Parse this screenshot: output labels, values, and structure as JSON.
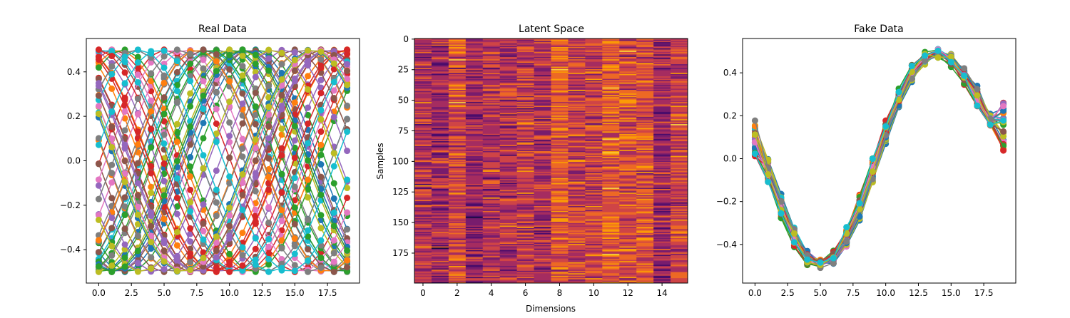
{
  "figure": {
    "palette": [
      "#1f77b4",
      "#ff7f0e",
      "#2ca02c",
      "#d62728",
      "#9467bd",
      "#8c564b",
      "#e377c2",
      "#7f7f7f",
      "#bcbd22",
      "#17becf"
    ],
    "heatmap_colors": [
      "#1b0c41",
      "#4a0c6b",
      "#781c6d",
      "#a52c60",
      "#cf4446",
      "#ed6925",
      "#fb9b06",
      "#f7d13d",
      "#fcffa4"
    ]
  },
  "chart_data": [
    {
      "type": "line",
      "title": "Real Data",
      "xlabel": "",
      "ylabel": "",
      "xlim": [
        -0.95,
        19.95
      ],
      "ylim": [
        -0.55,
        0.55
      ],
      "xticks": [
        0,
        2.5,
        5,
        7.5,
        10,
        12.5,
        15,
        17.5
      ],
      "xtick_labels": [
        "0.0",
        "2.5",
        "5.0",
        "7.5",
        "10.0",
        "12.5",
        "15.0",
        "17.5"
      ],
      "yticks": [
        -0.4,
        -0.2,
        0,
        0.2,
        0.4
      ],
      "ytick_labels": [
        "−0.4",
        "−0.2",
        "0.0",
        "0.2",
        "0.4"
      ],
      "markers": true,
      "series_description": "many sinusoids with amplitude 0.5, period about 20 steps, random phases",
      "x": [
        0,
        1,
        2,
        3,
        4,
        5,
        6,
        7,
        8,
        9,
        10,
        11,
        12,
        13,
        14,
        15,
        16,
        17,
        18,
        19
      ],
      "amplitude": 0.5,
      "period": 20,
      "n_series": 60
    },
    {
      "type": "heatmap",
      "title": "Latent Space",
      "xlabel": "Dimensions",
      "ylabel": "Samples",
      "n_rows": 200,
      "n_cols": 16,
      "colormap": "magma",
      "xticks": [
        0,
        2,
        4,
        6,
        8,
        10,
        12,
        14
      ],
      "xtick_labels": [
        "0",
        "2",
        "4",
        "6",
        "8",
        "10",
        "12",
        "14"
      ],
      "yticks": [
        0,
        25,
        50,
        75,
        100,
        125,
        150,
        175
      ],
      "ytick_labels": [
        "0",
        "25",
        "50",
        "75",
        "100",
        "125",
        "150",
        "175"
      ]
    },
    {
      "type": "line",
      "title": "Fake Data",
      "xlabel": "",
      "ylabel": "",
      "xlim": [
        -0.95,
        19.95
      ],
      "ylim": [
        -0.58,
        0.56
      ],
      "xticks": [
        0,
        2.5,
        5,
        7.5,
        10,
        12.5,
        15,
        17.5
      ],
      "xtick_labels": [
        "0.0",
        "2.5",
        "5.0",
        "7.5",
        "10.0",
        "12.5",
        "15.0",
        "17.5"
      ],
      "yticks": [
        -0.4,
        -0.2,
        0,
        0.2,
        0.4
      ],
      "ytick_labels": [
        "−0.4",
        "−0.2",
        "0.0",
        "0.2",
        "0.4"
      ],
      "markers": true,
      "x": [
        0,
        1,
        2,
        3,
        4,
        5,
        6,
        7,
        8,
        9,
        10,
        11,
        12,
        13,
        14,
        15,
        16,
        17,
        18,
        19
      ],
      "mean_values": [
        0.08,
        -0.06,
        -0.22,
        -0.36,
        -0.46,
        -0.49,
        -0.46,
        -0.37,
        -0.23,
        -0.06,
        0.12,
        0.28,
        0.4,
        0.47,
        0.49,
        0.46,
        0.39,
        0.29,
        0.18,
        0.16
      ],
      "n_series": 30
    }
  ]
}
